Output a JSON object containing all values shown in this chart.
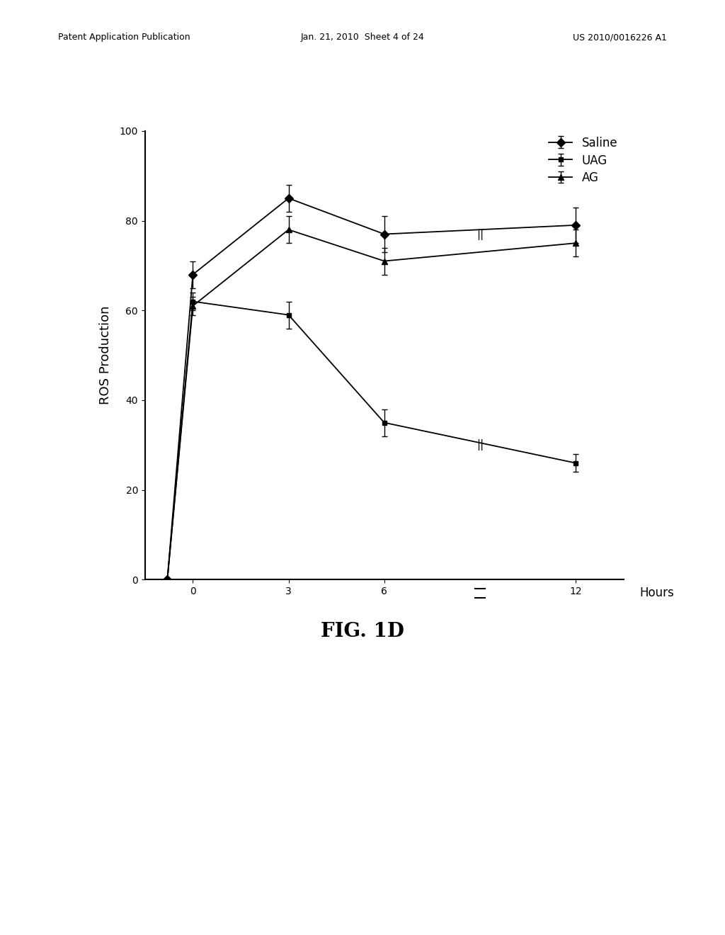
{
  "saline_x": [
    -0.8,
    0,
    3,
    6,
    12
  ],
  "saline_y": [
    0,
    68,
    85,
    77,
    79
  ],
  "saline_yerr": [
    0,
    3,
    3,
    4,
    4
  ],
  "uag_x": [
    -0.8,
    0,
    3,
    6,
    12
  ],
  "uag_y": [
    0,
    62,
    59,
    35,
    26
  ],
  "uag_yerr": [
    0,
    2,
    3,
    3,
    2
  ],
  "ag_x": [
    -0.8,
    0,
    3,
    6,
    12
  ],
  "ag_y": [
    0,
    61,
    78,
    71,
    75
  ],
  "ag_yerr": [
    0,
    2,
    3,
    3,
    3
  ],
  "ylim": [
    0,
    100
  ],
  "yticks": [
    0,
    20,
    40,
    60,
    80,
    100
  ],
  "x_ticks": [
    0,
    3,
    6,
    12
  ],
  "x_tick_labels": [
    "0",
    "3",
    "6",
    "12"
  ],
  "ylabel": "ROS Production",
  "xlabel": "Hours",
  "fig_label": "FIG. 1D",
  "legend_labels": [
    "Saline",
    "UAG",
    "AG"
  ],
  "background_color": "#ffffff",
  "header_left": "Patent Application Publication",
  "header_mid": "Jan. 21, 2010  Sheet 4 of 24",
  "header_right": "US 2010/0016226 A1"
}
